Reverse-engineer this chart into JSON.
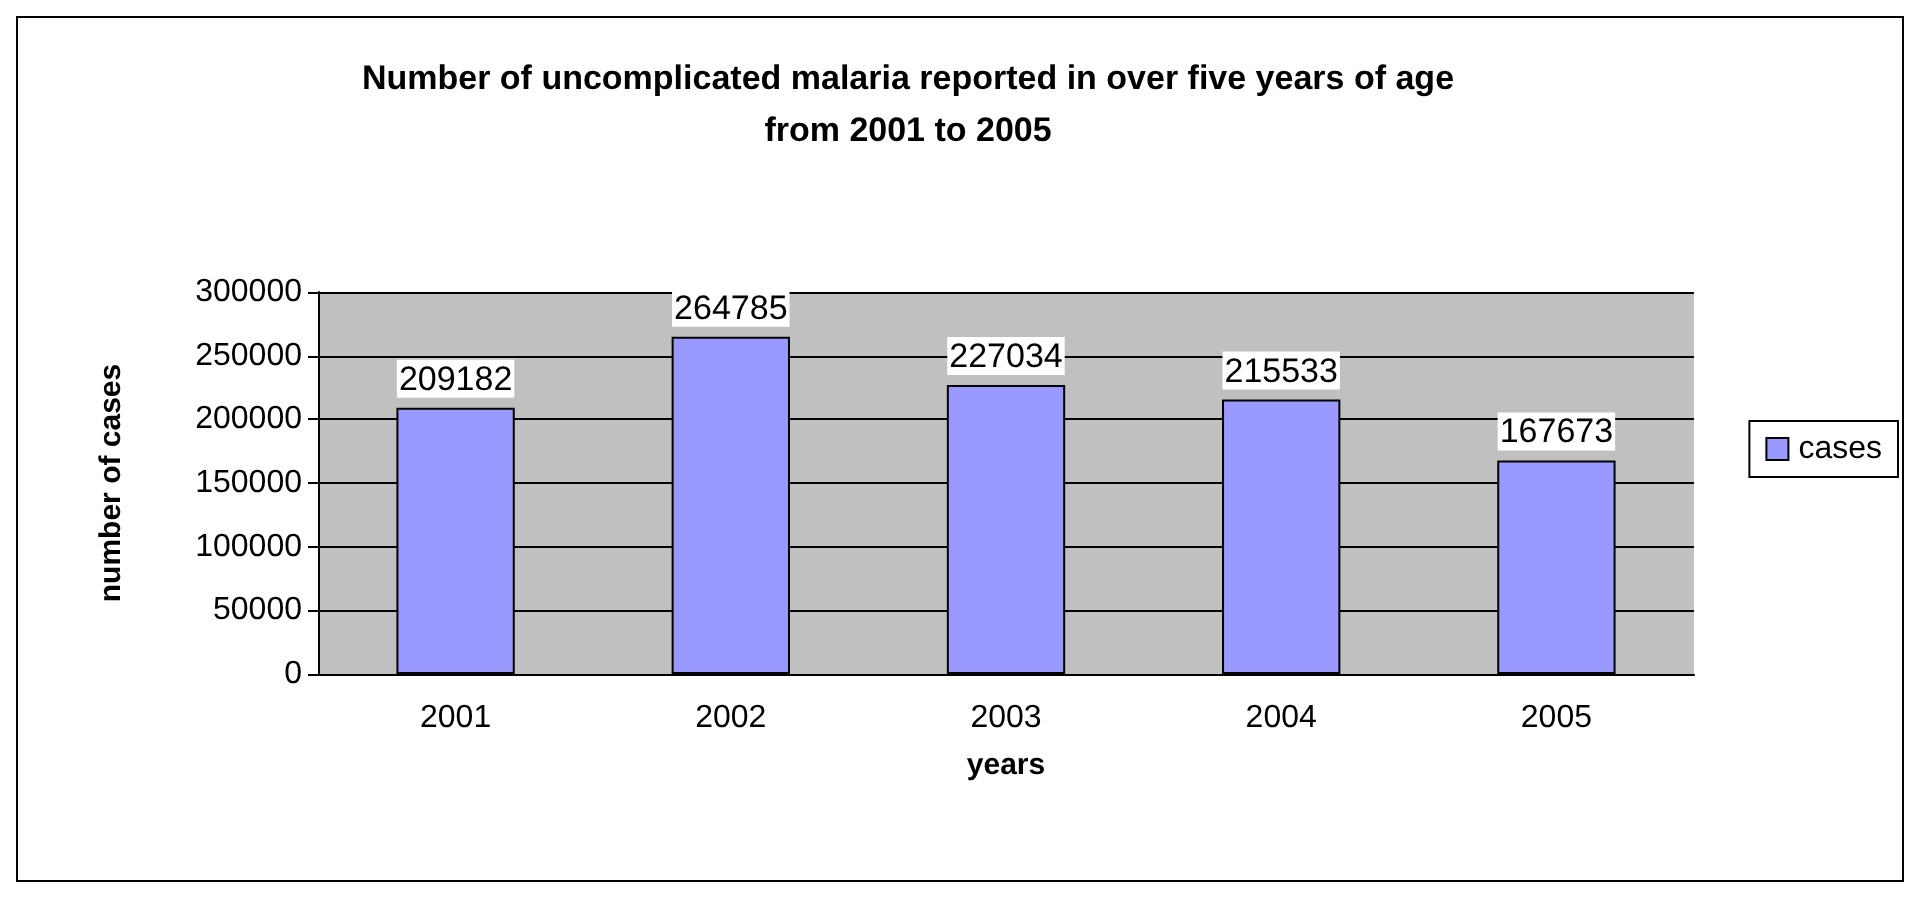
{
  "chart_data": {
    "type": "bar",
    "title": "Number of uncomplicated malaria reported in over five years of age\nfrom 2001 to 2005",
    "xlabel": "years",
    "ylabel": "number of cases",
    "categories": [
      "2001",
      "2002",
      "2003",
      "2004",
      "2005"
    ],
    "series": [
      {
        "name": "cases",
        "color": "#9999ff",
        "values": [
          209182,
          264785,
          227034,
          215533,
          167673
        ]
      }
    ],
    "ylim": [
      0,
      300000
    ],
    "yticks": [
      0,
      50000,
      100000,
      150000,
      200000,
      250000,
      300000
    ],
    "grid": "y",
    "legend": "right",
    "data_labels": true
  }
}
